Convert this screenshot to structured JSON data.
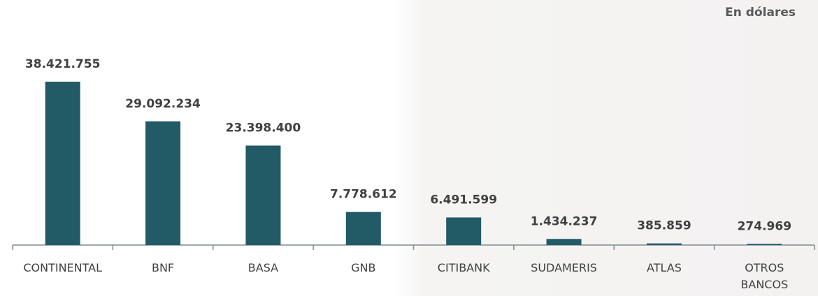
{
  "chart_data": {
    "type": "bar",
    "subtitle": "En dólares",
    "categories": [
      "CONTINENTAL",
      "BNF",
      "BASA",
      "GNB",
      "CITIBANK",
      "SUDAMERIS",
      "ATLAS",
      "OTROS BANCOS"
    ],
    "values": [
      38421755,
      29092234,
      23398400,
      7778612,
      6491599,
      1434237,
      385859,
      274969
    ],
    "value_labels": [
      "38.421.755",
      "29.092.234",
      "23.398.400",
      "7.778.612",
      "6.491.599",
      "1.434.237",
      "385.859",
      "274.969"
    ],
    "color": "#225a66"
  }
}
